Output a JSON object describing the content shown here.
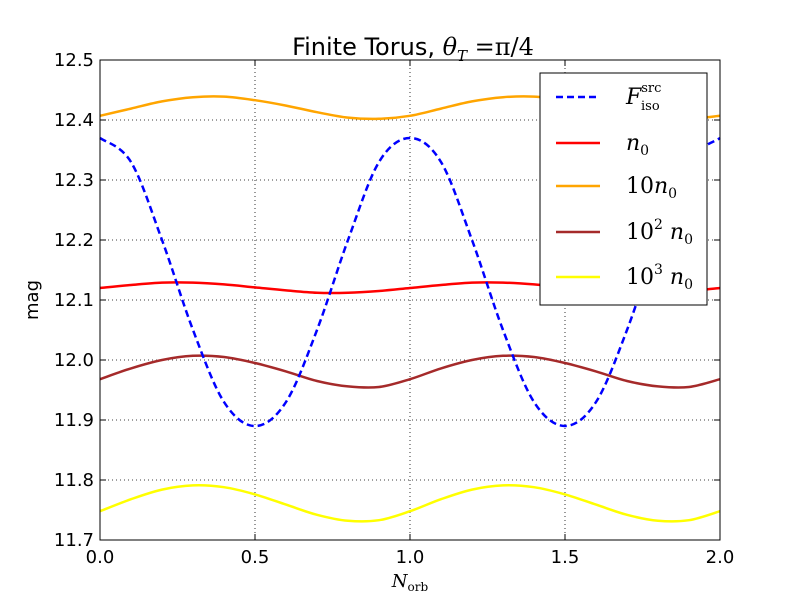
{
  "chart_data": {
    "type": "line",
    "title": {
      "text": "Finite Torus, ",
      "theta": "θ",
      "theta_sub": "T",
      "suffix": " =π/4"
    },
    "xlabel": {
      "main": "N",
      "sub": "orb"
    },
    "ylabel": "mag",
    "xlim": [
      0.0,
      2.0
    ],
    "ylim": [
      11.7,
      12.5
    ],
    "x_ticks": [
      0.0,
      0.5,
      1.0,
      1.5,
      2.0
    ],
    "x_tick_labels": [
      "0.0",
      "0.5",
      "1.0",
      "1.5",
      "2.0"
    ],
    "y_ticks": [
      11.7,
      11.8,
      11.9,
      12.0,
      12.1,
      12.2,
      12.3,
      12.4,
      12.5
    ],
    "y_tick_labels": [
      "11.7",
      "11.8",
      "11.9",
      "12.0",
      "12.1",
      "12.2",
      "12.3",
      "12.4",
      "12.5"
    ],
    "grid": true,
    "legend_position": "top-right",
    "x": [
      0.0,
      0.1,
      0.2,
      0.3,
      0.4,
      0.5,
      0.6,
      0.7,
      0.8,
      0.9,
      1.0,
      1.1,
      1.2,
      1.3,
      1.4,
      1.5,
      1.6,
      1.7,
      1.8,
      1.9,
      2.0
    ],
    "series": [
      {
        "legend": {
          "main": "F",
          "sup": "src",
          "sub": "iso"
        },
        "color": "#0000ff",
        "dash": "dashed",
        "values": [
          12.37,
          12.33,
          12.2,
          12.05,
          11.93,
          11.89,
          11.93,
          12.05,
          12.2,
          12.33,
          12.37,
          12.33,
          12.2,
          12.05,
          11.93,
          11.89,
          11.93,
          12.05,
          12.2,
          12.33,
          12.37
        ]
      },
      {
        "legend": {
          "main": "n",
          "sub": "0"
        },
        "color": "#ff0000",
        "dash": "solid",
        "values": [
          12.12,
          12.125,
          12.129,
          12.129,
          12.126,
          12.121,
          12.116,
          12.112,
          12.112,
          12.115,
          12.12,
          12.125,
          12.129,
          12.129,
          12.126,
          12.121,
          12.116,
          12.112,
          12.112,
          12.115,
          12.12
        ]
      },
      {
        "legend": {
          "pre": "10",
          "main": "n",
          "sub": "0"
        },
        "color": "#ffa500",
        "dash": "solid",
        "values": [
          12.407,
          12.419,
          12.431,
          12.438,
          12.439,
          12.433,
          12.424,
          12.413,
          12.404,
          12.402,
          12.407,
          12.419,
          12.431,
          12.438,
          12.439,
          12.433,
          12.424,
          12.413,
          12.404,
          12.402,
          12.407
        ]
      },
      {
        "legend": {
          "pre": "10",
          "pre_sup": "2",
          "main": "n",
          "sub": "0"
        },
        "color": "#a52a2a",
        "dash": "solid",
        "values": [
          11.968,
          11.986,
          12.0,
          12.007,
          12.005,
          11.995,
          11.981,
          11.965,
          11.956,
          11.955,
          11.968,
          11.986,
          12.0,
          12.007,
          12.005,
          11.995,
          11.981,
          11.965,
          11.956,
          11.955,
          11.968
        ]
      },
      {
        "legend": {
          "pre": "10",
          "pre_sup": "3",
          "main": "n",
          "sub": "0"
        },
        "color": "#ffff00",
        "dash": "solid",
        "values": [
          11.748,
          11.768,
          11.784,
          11.791,
          11.788,
          11.776,
          11.759,
          11.742,
          11.732,
          11.733,
          11.748,
          11.768,
          11.784,
          11.791,
          11.788,
          11.776,
          11.759,
          11.742,
          11.732,
          11.733,
          11.748
        ]
      }
    ]
  }
}
